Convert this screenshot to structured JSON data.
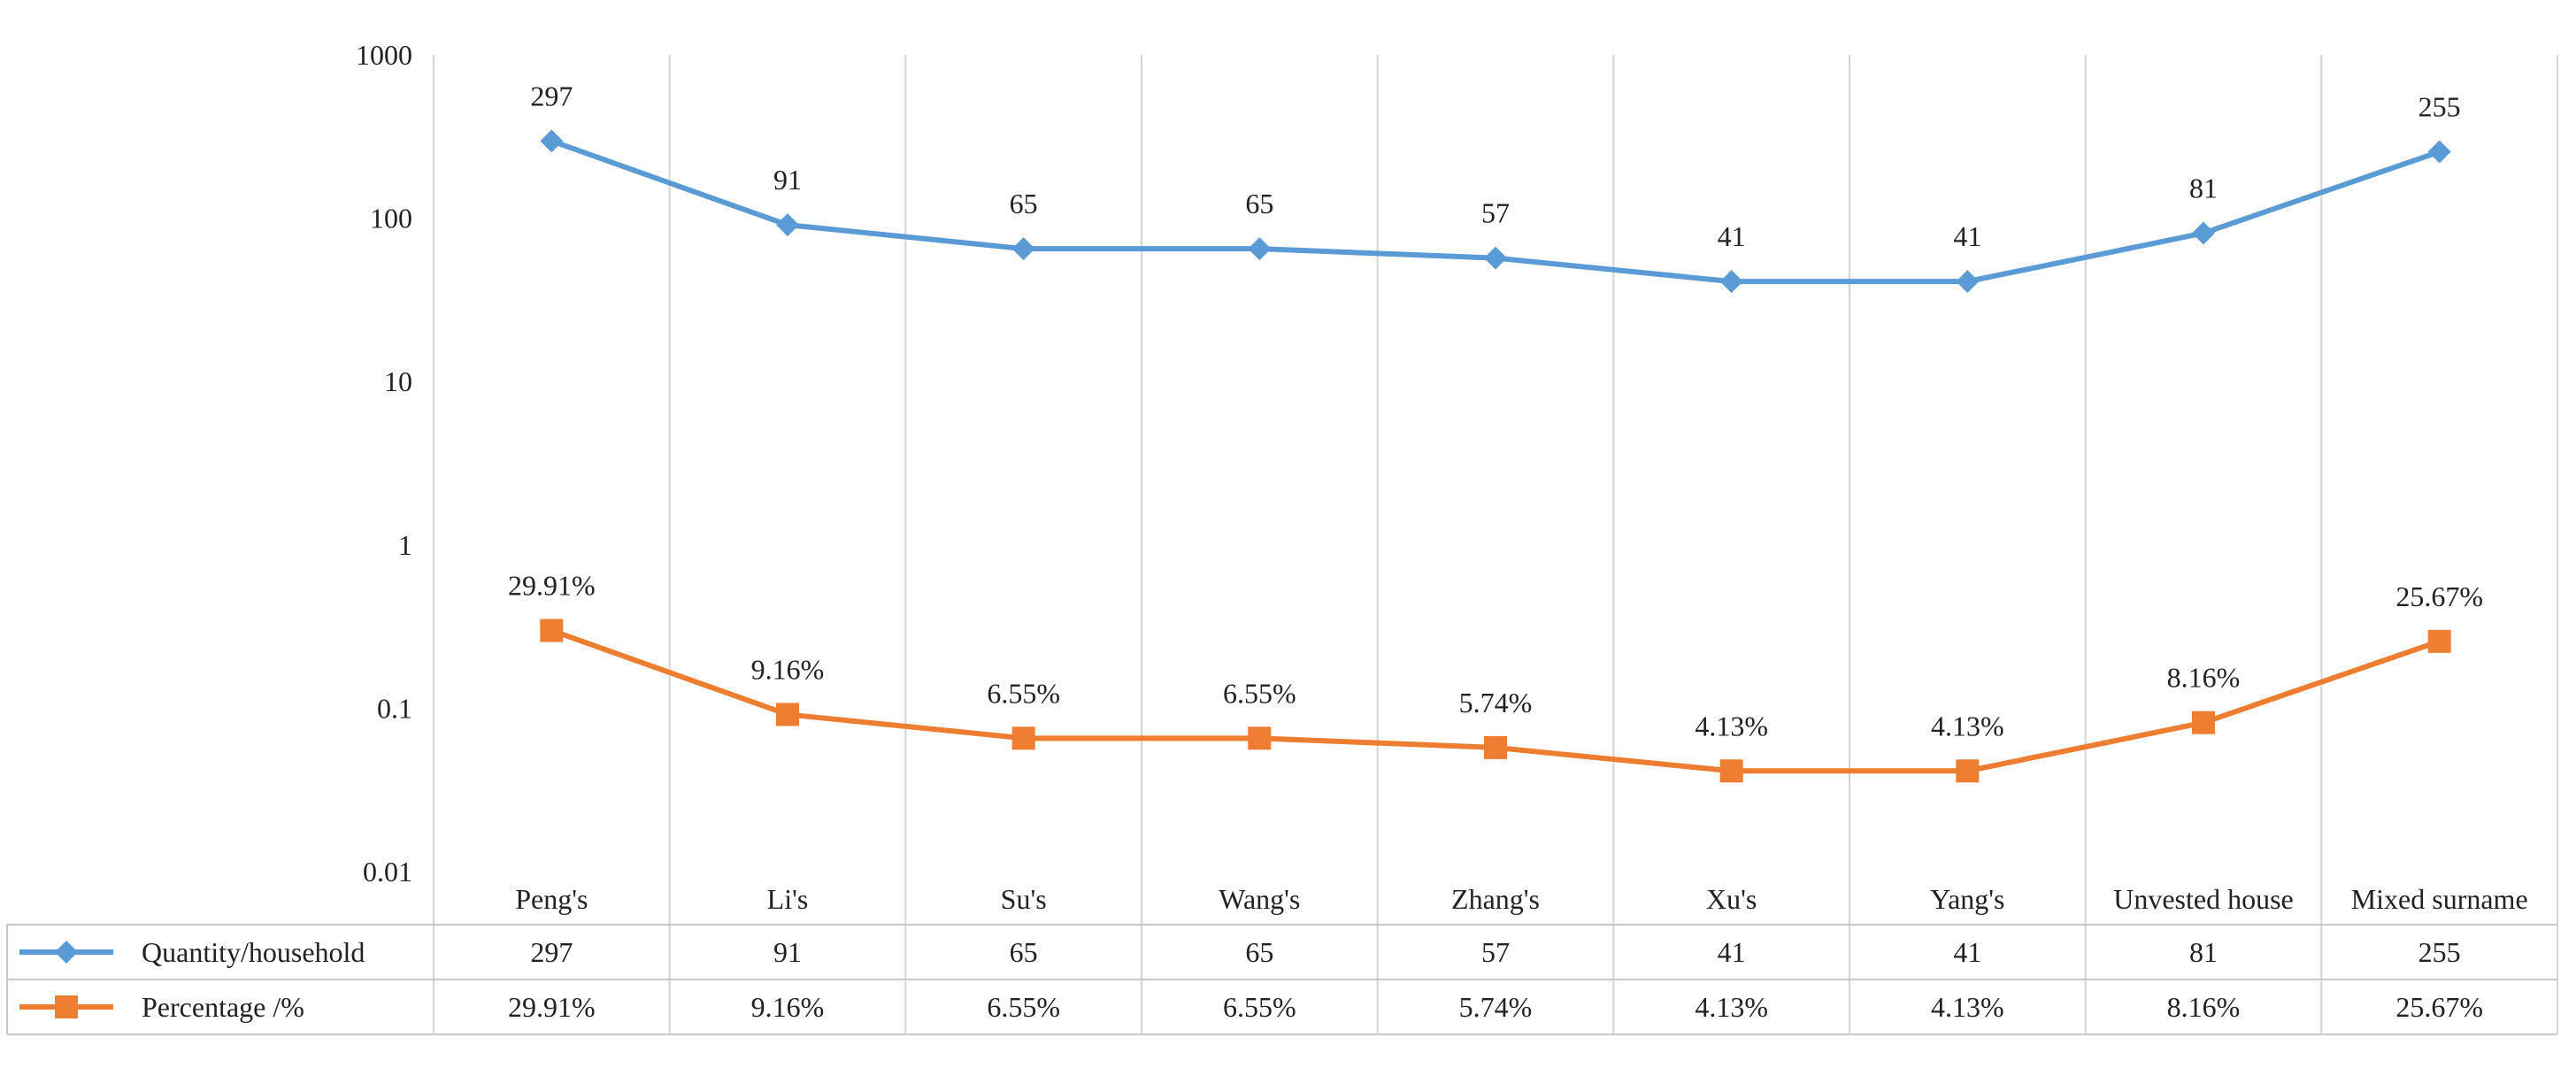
{
  "chart_data": {
    "type": "line",
    "title": "",
    "xlabel": "",
    "ylabel": "",
    "y_scale": "log",
    "ylim": [
      0.01,
      1000
    ],
    "y_ticks": [
      1000,
      100,
      10,
      1,
      0.1,
      0.01
    ],
    "y_tick_labels": [
      "1000",
      "100",
      "10",
      "1",
      "0.1",
      "0.01"
    ],
    "grid": true,
    "legend_position": "data-table-bottom",
    "categories": [
      "Peng's",
      "Li's",
      "Su's",
      "Wang's",
      "Zhang's",
      "Xu's",
      "Yang's",
      "Unvested house",
      "Mixed surname"
    ],
    "series": [
      {
        "name": "Quantity/household",
        "color": "#5b9bd5",
        "marker": "diamond",
        "values": [
          297,
          91,
          65,
          65,
          57,
          41,
          41,
          81,
          255
        ],
        "labels": [
          "297",
          "91",
          "65",
          "65",
          "57",
          "41",
          "41",
          "81",
          "255"
        ]
      },
      {
        "name": "Percentage /%",
        "color": "#ed7d31",
        "marker": "square",
        "values": [
          0.2991,
          0.0916,
          0.0655,
          0.0655,
          0.0574,
          0.0413,
          0.0413,
          0.0816,
          0.2567
        ],
        "labels": [
          "29.91%",
          "9.16%",
          "6.55%",
          "6.55%",
          "5.74%",
          "4.13%",
          "4.13%",
          "8.16%",
          "25.67%"
        ]
      }
    ]
  }
}
